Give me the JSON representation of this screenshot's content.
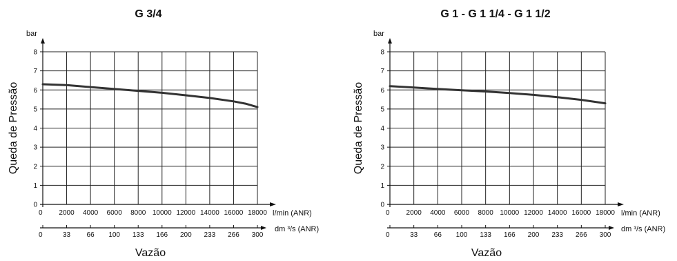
{
  "chart_data": [
    {
      "type": "line",
      "title": "G 3/4",
      "ylabel": "Queda de Pressão",
      "xlabel": "Vazão",
      "y_unit": "bar",
      "x_unit_primary": "l/min (ANR)",
      "x_unit_secondary": "dm ³/s (ANR)",
      "ylim": [
        0,
        8
      ],
      "xlim": [
        0,
        18000
      ],
      "y_ticks": [
        "0",
        "1",
        "2",
        "3",
        "4",
        "5",
        "6",
        "7",
        "8"
      ],
      "x_ticks": [
        "0",
        "2000",
        "4000",
        "6000",
        "8000",
        "10000",
        "12000",
        "14000",
        "16000",
        "18000"
      ],
      "x2_ticks": [
        "0",
        "33",
        "66",
        "100",
        "133",
        "166",
        "200",
        "233",
        "266",
        "300"
      ],
      "grid": true,
      "series": [
        {
          "x": [
            0,
            2000,
            4000,
            6000,
            8000,
            10000,
            12000,
            14000,
            16000,
            17000,
            18000
          ],
          "y": [
            6.3,
            6.25,
            6.15,
            6.05,
            5.95,
            5.85,
            5.72,
            5.58,
            5.4,
            5.28,
            5.1
          ]
        }
      ]
    },
    {
      "type": "line",
      "title": "G 1 - G 1 1/4 - G 1 1/2",
      "ylabel": "Queda de Pressão",
      "xlabel": "Vazão",
      "y_unit": "bar",
      "x_unit_primary": "l/min (ANR)",
      "x_unit_secondary": "dm ³/s (ANR)",
      "ylim": [
        0,
        8
      ],
      "xlim": [
        0,
        18000
      ],
      "y_ticks": [
        "0",
        "1",
        "2",
        "3",
        "4",
        "5",
        "6",
        "7",
        "8"
      ],
      "x_ticks": [
        "0",
        "2000",
        "4000",
        "6000",
        "8000",
        "10000",
        "12000",
        "14000",
        "16000",
        "18000"
      ],
      "x2_ticks": [
        "0",
        "33",
        "66",
        "100",
        "133",
        "166",
        "200",
        "233",
        "266",
        "300"
      ],
      "grid": true,
      "series": [
        {
          "x": [
            0,
            2000,
            4000,
            6000,
            8000,
            10000,
            12000,
            14000,
            16000,
            18000
          ],
          "y": [
            6.2,
            6.13,
            6.05,
            5.98,
            5.92,
            5.84,
            5.74,
            5.62,
            5.48,
            5.3
          ]
        }
      ]
    }
  ]
}
